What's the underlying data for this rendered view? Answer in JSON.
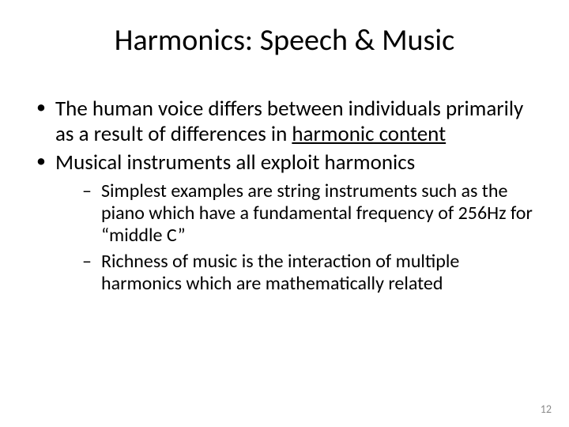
{
  "title": "Harmonics: Speech & Music",
  "bullets": [
    {
      "pre": "The human voice differs between individuals primarily as a result of differences in ",
      "underlined": "harmonic content"
    },
    {
      "text": "Musical instruments all exploit harmonics",
      "sub": [
        "Simplest examples are string instruments such as the piano which have a fundamental frequency of 256Hz for “middle C”",
        "Richness of music is the interaction of multiple harmonics which are mathematically related"
      ]
    }
  ],
  "page_number": "12",
  "colors": {
    "background": "#ffffff",
    "text": "#000000",
    "page_num": "#8a8a8a"
  },
  "fonts": {
    "title_size": 38,
    "body_size": 27,
    "sub_size": 24,
    "page_num_size": 14
  }
}
